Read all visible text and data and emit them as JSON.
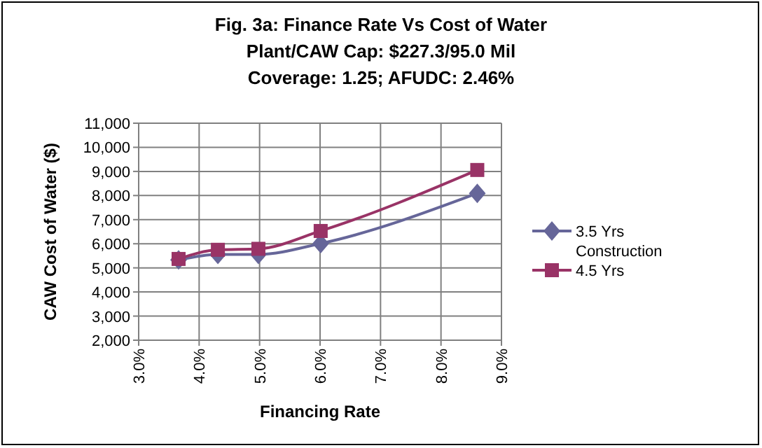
{
  "chart_data": {
    "type": "line",
    "title": "Fig. 3a: Finance Rate Vs Cost of Water\nPlant/CAW Cap: $227.3/95.0 Mil\nCoverage: 1.25; AFUDC: 2.46%",
    "xlabel": "Financing Rate",
    "ylabel": "CAW Cost of Water ($)",
    "x": [
      3.66,
      4.31,
      4.98,
      6.01,
      8.6
    ],
    "series": [
      {
        "name": "3.5 Yrs Construction",
        "color": "#666699",
        "marker": "diamond",
        "values": [
          5330,
          5560,
          5560,
          6010,
          8090
        ]
      },
      {
        "name": "4.5 Yrs",
        "color": "#993366",
        "marker": "square",
        "values": [
          5370,
          5750,
          5790,
          6530,
          9060
        ]
      }
    ],
    "xlim": [
      3,
      9
    ],
    "xticks": [
      {
        "value": 3,
        "label": "3.0%"
      },
      {
        "value": 4,
        "label": "4.0%"
      },
      {
        "value": 5,
        "label": "5.0%"
      },
      {
        "value": 6,
        "label": "6.0%"
      },
      {
        "value": 7,
        "label": "7.0%"
      },
      {
        "value": 8,
        "label": "8.0%"
      },
      {
        "value": 9,
        "label": "9.0%"
      }
    ],
    "ylim": [
      2000,
      11000
    ],
    "yticks": [
      {
        "value": 2000,
        "label": "2,000"
      },
      {
        "value": 3000,
        "label": "3,000"
      },
      {
        "value": 4000,
        "label": "4,000"
      },
      {
        "value": 5000,
        "label": "5,000"
      },
      {
        "value": 6000,
        "label": "6,000"
      },
      {
        "value": 7000,
        "label": "7,000"
      },
      {
        "value": 8000,
        "label": "8,000"
      },
      {
        "value": 9000,
        "label": "9,000"
      },
      {
        "value": 10000,
        "label": "10,000"
      },
      {
        "value": 11000,
        "label": "11,000"
      }
    ],
    "grid": true,
    "legend": "right"
  }
}
